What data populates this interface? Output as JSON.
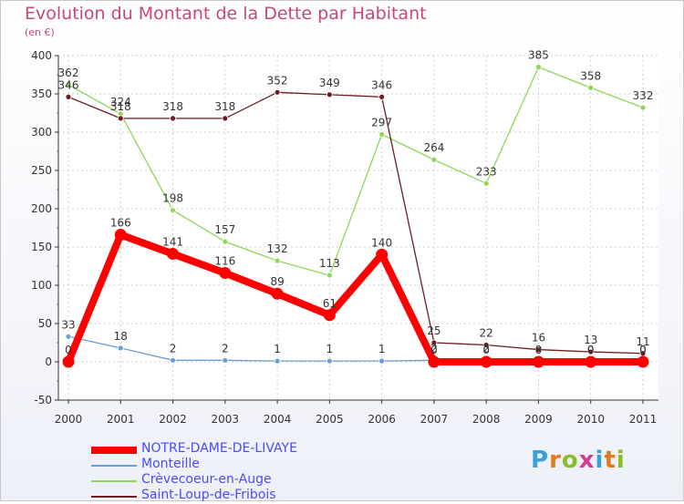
{
  "chart_data": {
    "type": "line",
    "title": "Evolution du Montant de la Dette par Habitant",
    "subtitle": "(en €)",
    "xlabel": "",
    "ylabel": "",
    "ylim": [
      -50,
      400
    ],
    "y_ticks": [
      "-50",
      "0",
      "50",
      "100",
      "150",
      "200",
      "250",
      "300",
      "350",
      "400"
    ],
    "x": [
      "2000",
      "2001",
      "2002",
      "2003",
      "2004",
      "2005",
      "2006",
      "2007",
      "2008",
      "2009",
      "2010",
      "2011"
    ],
    "grid": true,
    "legend_position": "bottom-left",
    "series": [
      {
        "name": "NOTRE-DAME-DE-LIVAYE",
        "color": "#ff0000",
        "values": [
          0,
          166,
          141,
          116,
          89,
          61,
          140,
          0,
          0,
          0,
          0,
          0
        ],
        "labels": [
          "0",
          "166",
          "141",
          "116",
          "89",
          "61",
          "140",
          "0",
          "0",
          "0",
          "0",
          "0"
        ]
      },
      {
        "name": "Monteille",
        "color": "#6b9fd4",
        "values": [
          33,
          18,
          2,
          2,
          1,
          1,
          1,
          2,
          2,
          0,
          0,
          0
        ],
        "labels": [
          "33",
          "18",
          "2",
          "2",
          "1",
          "1",
          "1",
          "2",
          "2",
          "0",
          "0",
          "0"
        ]
      },
      {
        "name": "Crèvecoeur-en-Auge",
        "color": "#8ed65a",
        "values": [
          362,
          324,
          198,
          157,
          132,
          113,
          297,
          264,
          233,
          385,
          358,
          332
        ],
        "labels": [
          "362",
          "324",
          "198",
          "157",
          "132",
          "113",
          "297",
          "264",
          "233",
          "385",
          "358",
          "332"
        ]
      },
      {
        "name": "Saint-Loup-de-Fribois",
        "color": "#6e1c22",
        "values": [
          346,
          318,
          318,
          318,
          352,
          349,
          346,
          25,
          22,
          16,
          13,
          11
        ],
        "labels": [
          "346",
          "318",
          "318",
          "318",
          "352",
          "349",
          "346",
          "25",
          "22",
          "16",
          "13",
          "11"
        ]
      }
    ]
  },
  "logo": {
    "text": "Proxiti"
  }
}
